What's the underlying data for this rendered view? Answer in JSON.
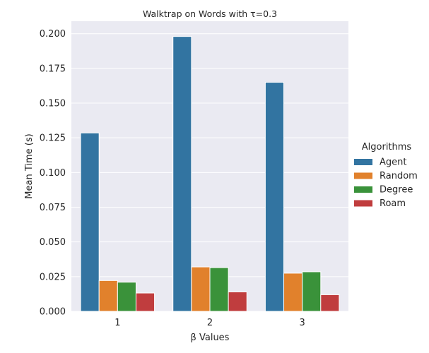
{
  "chart_data": {
    "type": "bar",
    "title": "Walktrap on Words with τ=0.3",
    "xlabel": "β Values",
    "ylabel": "Mean Time (s)",
    "categories": [
      "1",
      "2",
      "3"
    ],
    "ylim": [
      0,
      0.209
    ],
    "yticks": [
      "0.000",
      "0.025",
      "0.050",
      "0.075",
      "0.100",
      "0.125",
      "0.150",
      "0.175",
      "0.200"
    ],
    "grid": true,
    "legend": {
      "title": "Algorithms",
      "placement": "right"
    },
    "series": [
      {
        "name": "Agent",
        "color": "#3274a1",
        "values": [
          0.1285,
          0.198,
          0.165
        ]
      },
      {
        "name": "Random",
        "color": "#e1812c",
        "values": [
          0.0222,
          0.032,
          0.0275
        ]
      },
      {
        "name": "Degree",
        "color": "#3a923a",
        "values": [
          0.021,
          0.0315,
          0.0285
        ]
      },
      {
        "name": "Roam",
        "color": "#c03d3e",
        "values": [
          0.0132,
          0.014,
          0.012
        ]
      }
    ]
  }
}
